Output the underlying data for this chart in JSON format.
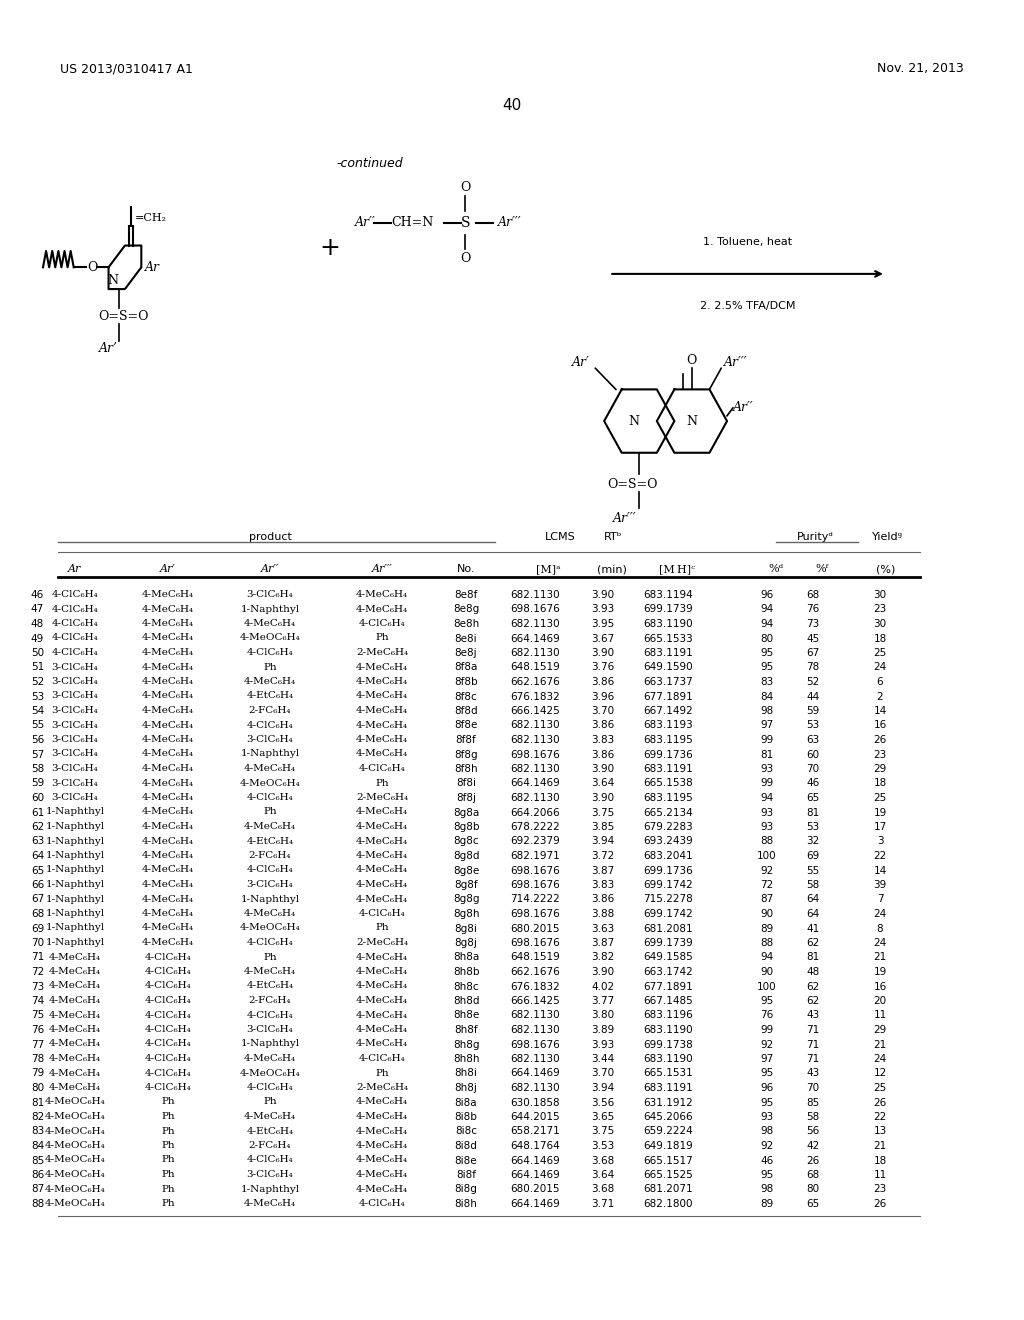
{
  "header_left": "US 2013/0310417 A1",
  "header_right": "Nov. 21, 2013",
  "page_number": "40",
  "continued_text": "-continued",
  "background_color": "#ffffff",
  "rows": [
    [
      "46",
      "4-ClC₆H₄",
      "4-MeC₆H₄",
      "3-ClC₆H₄",
      "4-MeC₆H₄",
      "8e8f",
      "682.1130",
      "3.90",
      "683.1194",
      "96",
      "68",
      "30"
    ],
    [
      "47",
      "4-ClC₆H₄",
      "4-MeC₆H₄",
      "1-Naphthyl",
      "4-MeC₆H₄",
      "8e8g",
      "698.1676",
      "3.93",
      "699.1739",
      "94",
      "76",
      "23"
    ],
    [
      "48",
      "4-ClC₆H₄",
      "4-MeC₆H₄",
      "4-MeC₆H₄",
      "4-ClC₆H₄",
      "8e8h",
      "682.1130",
      "3.95",
      "683.1190",
      "94",
      "73",
      "30"
    ],
    [
      "49",
      "4-ClC₆H₄",
      "4-MeC₆H₄",
      "4-MeOC₆H₄",
      "Ph",
      "8e8i",
      "664.1469",
      "3.67",
      "665.1533",
      "80",
      "45",
      "18"
    ],
    [
      "50",
      "4-ClC₆H₄",
      "4-MeC₆H₄",
      "4-ClC₆H₄",
      "2-MeC₆H₄",
      "8e8j",
      "682.1130",
      "3.90",
      "683.1191",
      "95",
      "67",
      "25"
    ],
    [
      "51",
      "3-ClC₆H₄",
      "4-MeC₆H₄",
      "Ph",
      "4-MeC₆H₄",
      "8f8a",
      "648.1519",
      "3.76",
      "649.1590",
      "95",
      "78",
      "24"
    ],
    [
      "52",
      "3-ClC₆H₄",
      "4-MeC₆H₄",
      "4-MeC₆H₄",
      "4-MeC₆H₄",
      "8f8b",
      "662.1676",
      "3.86",
      "663.1737",
      "83",
      "52",
      "6"
    ],
    [
      "53",
      "3-ClC₆H₄",
      "4-MeC₆H₄",
      "4-EtC₆H₄",
      "4-MeC₆H₄",
      "8f8c",
      "676.1832",
      "3.96",
      "677.1891",
      "84",
      "44",
      "2"
    ],
    [
      "54",
      "3-ClC₆H₄",
      "4-MeC₆H₄",
      "2-FC₆H₄",
      "4-MeC₆H₄",
      "8f8d",
      "666.1425",
      "3.70",
      "667.1492",
      "98",
      "59",
      "14"
    ],
    [
      "55",
      "3-ClC₆H₄",
      "4-MeC₆H₄",
      "4-ClC₆H₄",
      "4-MeC₆H₄",
      "8f8e",
      "682.1130",
      "3.86",
      "683.1193",
      "97",
      "53",
      "16"
    ],
    [
      "56",
      "3-ClC₆H₄",
      "4-MeC₆H₄",
      "3-ClC₆H₄",
      "4-MeC₆H₄",
      "8f8f",
      "682.1130",
      "3.83",
      "683.1195",
      "99",
      "63",
      "26"
    ],
    [
      "57",
      "3-ClC₆H₄",
      "4-MeC₆H₄",
      "1-Naphthyl",
      "4-MeC₆H₄",
      "8f8g",
      "698.1676",
      "3.86",
      "699.1736",
      "81",
      "60",
      "23"
    ],
    [
      "58",
      "3-ClC₆H₄",
      "4-MeC₆H₄",
      "4-MeC₆H₄",
      "4-ClC₆H₄",
      "8f8h",
      "682.1130",
      "3.90",
      "683.1191",
      "93",
      "70",
      "29"
    ],
    [
      "59",
      "3-ClC₆H₄",
      "4-MeC₆H₄",
      "4-MeOC₆H₄",
      "Ph",
      "8f8i",
      "664.1469",
      "3.64",
      "665.1538",
      "99",
      "46",
      "18"
    ],
    [
      "60",
      "3-ClC₆H₄",
      "4-MeC₆H₄",
      "4-ClC₆H₄",
      "2-MeC₆H₄",
      "8f8j",
      "682.1130",
      "3.90",
      "683.1195",
      "94",
      "65",
      "25"
    ],
    [
      "61",
      "1-Naphthyl",
      "4-MeC₆H₄",
      "Ph",
      "4-MeC₆H₄",
      "8g8a",
      "664.2066",
      "3.75",
      "665.2134",
      "93",
      "81",
      "19"
    ],
    [
      "62",
      "1-Naphthyl",
      "4-MeC₆H₄",
      "4-MeC₆H₄",
      "4-MeC₆H₄",
      "8g8b",
      "678.2222",
      "3.85",
      "679.2283",
      "93",
      "53",
      "17"
    ],
    [
      "63",
      "1-Naphthyl",
      "4-MeC₆H₄",
      "4-EtC₆H₄",
      "4-MeC₆H₄",
      "8g8c",
      "692.2379",
      "3.94",
      "693.2439",
      "88",
      "32",
      "3"
    ],
    [
      "64",
      "1-Naphthyl",
      "4-MeC₆H₄",
      "2-FC₆H₄",
      "4-MeC₆H₄",
      "8g8d",
      "682.1971",
      "3.72",
      "683.2041",
      "100",
      "69",
      "22"
    ],
    [
      "65",
      "1-Naphthyl",
      "4-MeC₆H₄",
      "4-ClC₆H₄",
      "4-MeC₆H₄",
      "8g8e",
      "698.1676",
      "3.87",
      "699.1736",
      "92",
      "55",
      "14"
    ],
    [
      "66",
      "1-Naphthyl",
      "4-MeC₆H₄",
      "3-ClC₆H₄",
      "4-MeC₆H₄",
      "8g8f",
      "698.1676",
      "3.83",
      "699.1742",
      "72",
      "58",
      "39"
    ],
    [
      "67",
      "1-Naphthyl",
      "4-MeC₆H₄",
      "1-Naphthyl",
      "4-MeC₆H₄",
      "8g8g",
      "714.2222",
      "3.86",
      "715.2278",
      "87",
      "64",
      "7"
    ],
    [
      "68",
      "1-Naphthyl",
      "4-MeC₆H₄",
      "4-MeC₆H₄",
      "4-ClC₆H₄",
      "8g8h",
      "698.1676",
      "3.88",
      "699.1742",
      "90",
      "64",
      "24"
    ],
    [
      "69",
      "1-Naphthyl",
      "4-MeC₆H₄",
      "4-MeOC₆H₄",
      "Ph",
      "8g8i",
      "680.2015",
      "3.63",
      "681.2081",
      "89",
      "41",
      "8"
    ],
    [
      "70",
      "1-Naphthyl",
      "4-MeC₆H₄",
      "4-ClC₆H₄",
      "2-MeC₆H₄",
      "8g8j",
      "698.1676",
      "3.87",
      "699.1739",
      "88",
      "62",
      "24"
    ],
    [
      "71",
      "4-MeC₆H₄",
      "4-ClC₆H₄",
      "Ph",
      "4-MeC₆H₄",
      "8h8a",
      "648.1519",
      "3.82",
      "649.1585",
      "94",
      "81",
      "21"
    ],
    [
      "72",
      "4-MeC₆H₄",
      "4-ClC₆H₄",
      "4-MeC₆H₄",
      "4-MeC₆H₄",
      "8h8b",
      "662.1676",
      "3.90",
      "663.1742",
      "90",
      "48",
      "19"
    ],
    [
      "73",
      "4-MeC₆H₄",
      "4-ClC₆H₄",
      "4-EtC₆H₄",
      "4-MeC₆H₄",
      "8h8c",
      "676.1832",
      "4.02",
      "677.1891",
      "100",
      "62",
      "16"
    ],
    [
      "74",
      "4-MeC₆H₄",
      "4-ClC₆H₄",
      "2-FC₆H₄",
      "4-MeC₆H₄",
      "8h8d",
      "666.1425",
      "3.77",
      "667.1485",
      "95",
      "62",
      "20"
    ],
    [
      "75",
      "4-MeC₆H₄",
      "4-ClC₆H₄",
      "4-ClC₆H₄",
      "4-MeC₆H₄",
      "8h8e",
      "682.1130",
      "3.80",
      "683.1196",
      "76",
      "43",
      "11"
    ],
    [
      "76",
      "4-MeC₆H₄",
      "4-ClC₆H₄",
      "3-ClC₆H₄",
      "4-MeC₆H₄",
      "8h8f",
      "682.1130",
      "3.89",
      "683.1190",
      "99",
      "71",
      "29"
    ],
    [
      "77",
      "4-MeC₆H₄",
      "4-ClC₆H₄",
      "1-Naphthyl",
      "4-MeC₆H₄",
      "8h8g",
      "698.1676",
      "3.93",
      "699.1738",
      "92",
      "71",
      "21"
    ],
    [
      "78",
      "4-MeC₆H₄",
      "4-ClC₆H₄",
      "4-MeC₆H₄",
      "4-ClC₆H₄",
      "8h8h",
      "682.1130",
      "3.44",
      "683.1190",
      "97",
      "71",
      "24"
    ],
    [
      "79",
      "4-MeC₆H₄",
      "4-ClC₆H₄",
      "4-MeOC₆H₄",
      "Ph",
      "8h8i",
      "664.1469",
      "3.70",
      "665.1531",
      "95",
      "43",
      "12"
    ],
    [
      "80",
      "4-MeC₆H₄",
      "4-ClC₆H₄",
      "4-ClC₆H₄",
      "2-MeC₆H₄",
      "8h8j",
      "682.1130",
      "3.94",
      "683.1191",
      "96",
      "70",
      "25"
    ],
    [
      "81",
      "4-MeOC₆H₄",
      "Ph",
      "Ph",
      "4-MeC₆H₄",
      "8i8a",
      "630.1858",
      "3.56",
      "631.1912",
      "95",
      "85",
      "26"
    ],
    [
      "82",
      "4-MeOC₆H₄",
      "Ph",
      "4-MeC₆H₄",
      "4-MeC₆H₄",
      "8i8b",
      "644.2015",
      "3.65",
      "645.2066",
      "93",
      "58",
      "22"
    ],
    [
      "83",
      "4-MeOC₆H₄",
      "Ph",
      "4-EtC₆H₄",
      "4-MeC₆H₄",
      "8i8c",
      "658.2171",
      "3.75",
      "659.2224",
      "98",
      "56",
      "13"
    ],
    [
      "84",
      "4-MeOC₆H₄",
      "Ph",
      "2-FC₆H₄",
      "4-MeC₆H₄",
      "8i8d",
      "648.1764",
      "3.53",
      "649.1819",
      "92",
      "42",
      "21"
    ],
    [
      "85",
      "4-MeOC₆H₄",
      "Ph",
      "4-ClC₆H₄",
      "4-MeC₆H₄",
      "8i8e",
      "664.1469",
      "3.68",
      "665.1517",
      "46",
      "26",
      "18"
    ],
    [
      "86",
      "4-MeOC₆H₄",
      "Ph",
      "3-ClC₆H₄",
      "4-MeC₆H₄",
      "8i8f",
      "664.1469",
      "3.64",
      "665.1525",
      "95",
      "68",
      "11"
    ],
    [
      "87",
      "4-MeOC₆H₄",
      "Ph",
      "1-Naphthyl",
      "4-MeC₆H₄",
      "8i8g",
      "680.2015",
      "3.68",
      "681.2071",
      "98",
      "80",
      "23"
    ],
    [
      "88",
      "4-MeOC₆H₄",
      "Ph",
      "4-MeC₆H₄",
      "4-ClC₆H₄",
      "8i8h",
      "664.1469",
      "3.71",
      "682.1800",
      "89",
      "65",
      "26"
    ]
  ]
}
